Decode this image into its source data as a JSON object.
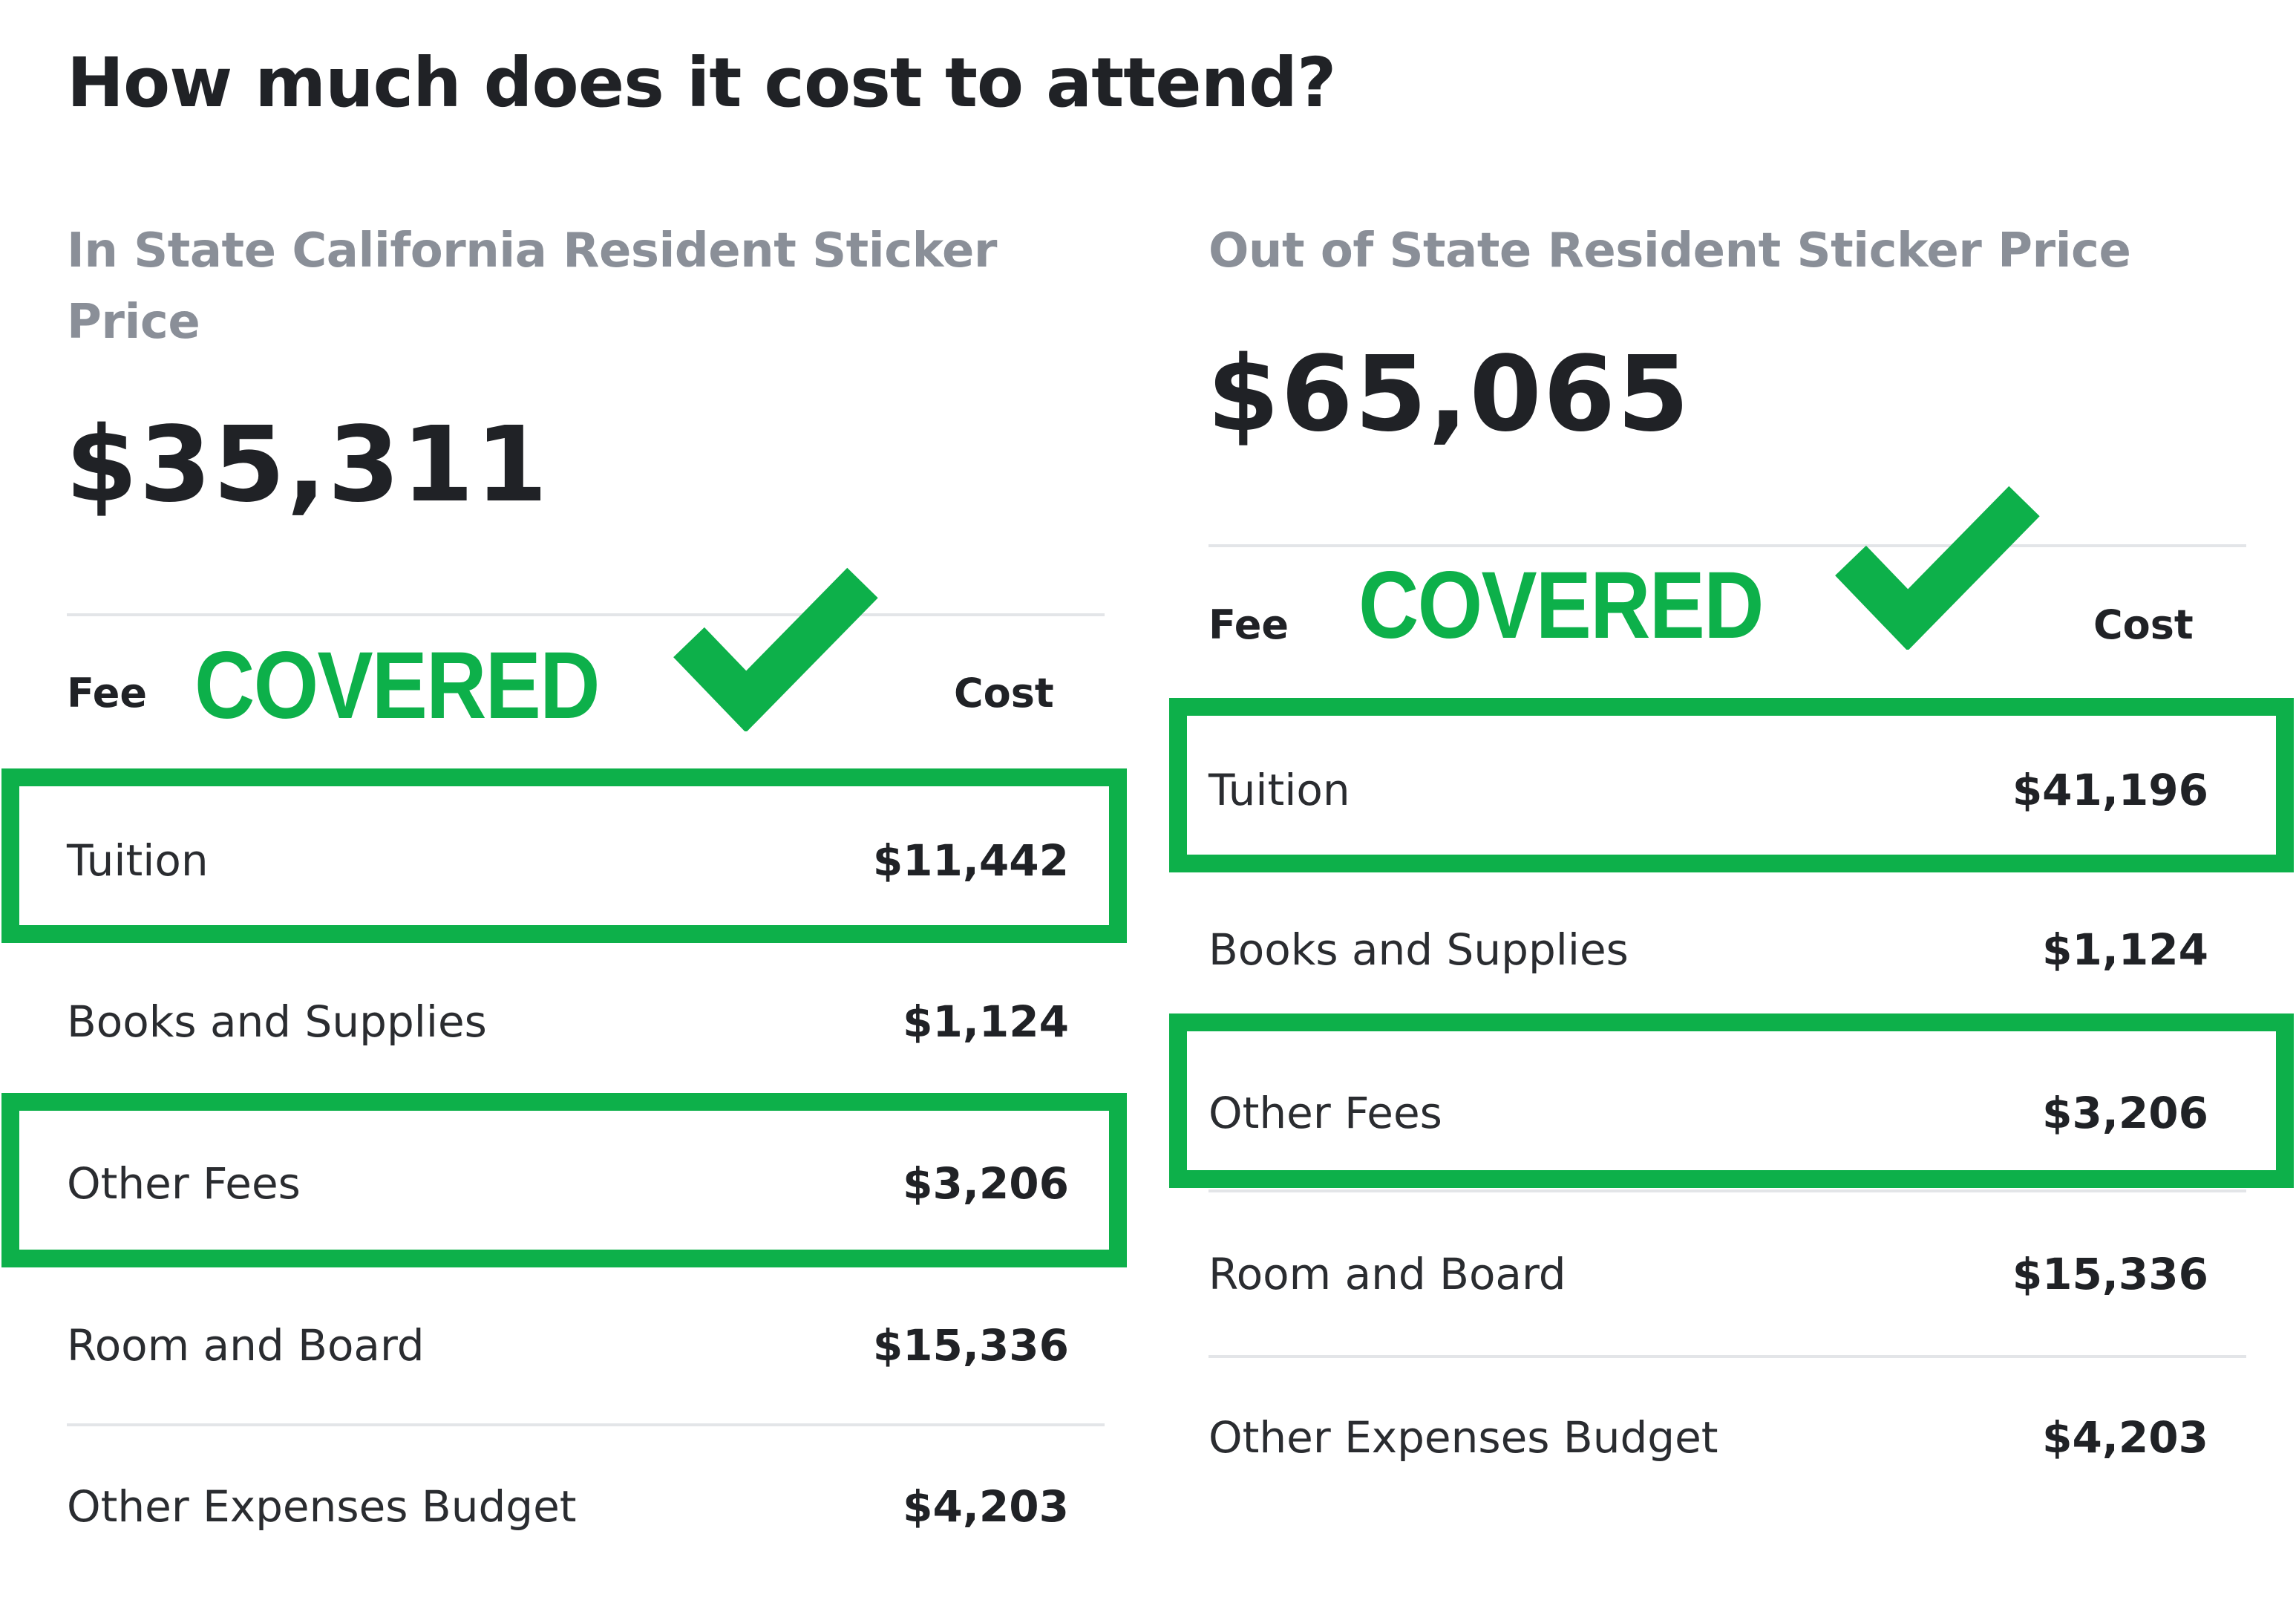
{
  "page": {
    "title": "How much does it cost to attend?"
  },
  "in_state": {
    "heading_line1": "In State California Resident Sticker",
    "heading_line2": "Price",
    "total": "$35,311",
    "fee_header": "Fee",
    "cost_header": "Cost",
    "covered_label": "COVERED",
    "rows": [
      {
        "label": "Tuition",
        "cost": "$11,442",
        "covered": true
      },
      {
        "label": "Books and Supplies",
        "cost": "$1,124",
        "covered": false
      },
      {
        "label": "Other Fees",
        "cost": "$3,206",
        "covered": true
      },
      {
        "label": "Room and Board",
        "cost": "$15,336",
        "covered": false
      },
      {
        "label": "Other Expenses Budget",
        "cost": "$4,203",
        "covered": false
      }
    ]
  },
  "out_of_state": {
    "heading": "Out of State Resident Sticker Price",
    "total": "$65,065",
    "fee_header": "Fee",
    "cost_header": "Cost",
    "covered_label": "COVERED",
    "rows": [
      {
        "label": "Tuition",
        "cost": "$41,196",
        "covered": true
      },
      {
        "label": "Books and Supplies",
        "cost": "$1,124",
        "covered": false
      },
      {
        "label": "Other Fees",
        "cost": "$3,206",
        "covered": true
      },
      {
        "label": "Room and Board",
        "cost": "$15,336",
        "covered": false
      },
      {
        "label": "Other Expenses Budget",
        "cost": "$4,203",
        "covered": false
      }
    ]
  },
  "colors": {
    "covered_green": "#0db04a",
    "subheading_gray": "#8a8f98",
    "text_dark": "#202226",
    "divider": "#e3e5e8"
  },
  "icons": {
    "covered_mark": "checkmark-icon"
  }
}
